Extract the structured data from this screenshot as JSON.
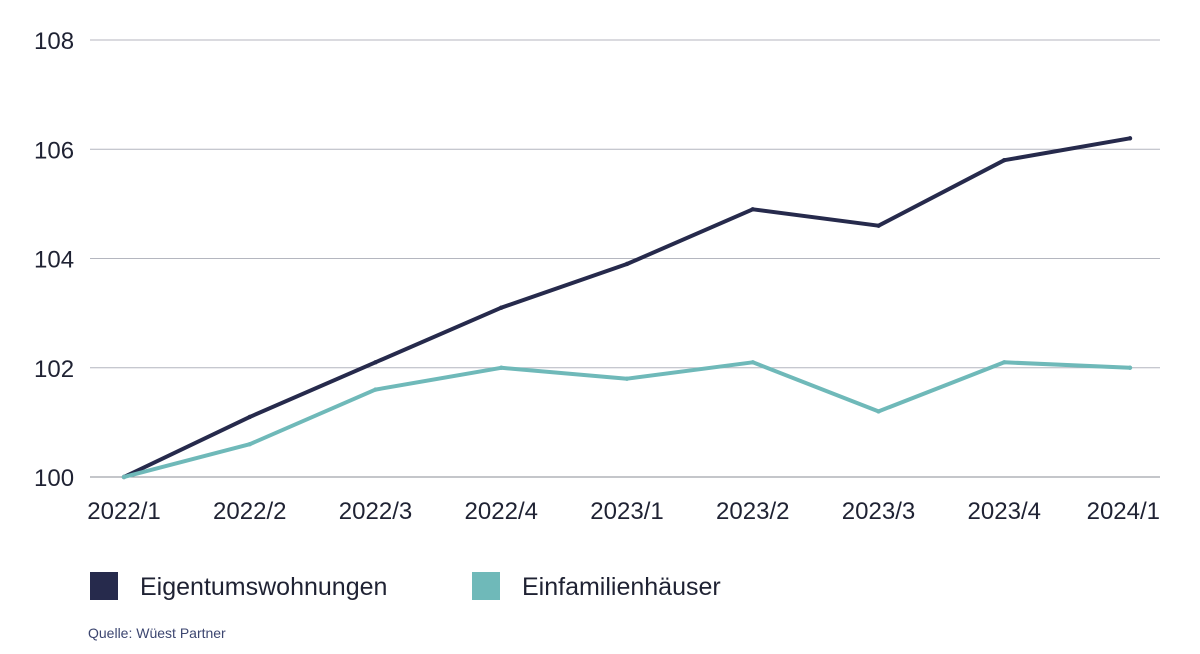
{
  "chart_data": {
    "type": "line",
    "categories": [
      "2022/1",
      "2022/2",
      "2022/3",
      "2022/4",
      "2023/1",
      "2023/2",
      "2023/3",
      "2023/4",
      "2024/1"
    ],
    "series": [
      {
        "name": "Eigentumswohnungen",
        "color": "#262a4c",
        "values": [
          100.0,
          101.1,
          102.1,
          103.1,
          103.9,
          104.9,
          104.6,
          105.8,
          106.2
        ]
      },
      {
        "name": "Einfamilienhäuser",
        "color": "#6fb9b9",
        "values": [
          100.0,
          100.6,
          101.6,
          102.0,
          101.8,
          102.1,
          101.2,
          102.1,
          102.0
        ]
      }
    ],
    "ylim": [
      100,
      108
    ],
    "yticks": [
      "100",
      "102",
      "104",
      "106",
      "108"
    ],
    "grid": true,
    "legend_position": "bottom-left",
    "title": "",
    "xlabel": "",
    "ylabel": ""
  },
  "source": "Quelle: Wüest Partner"
}
